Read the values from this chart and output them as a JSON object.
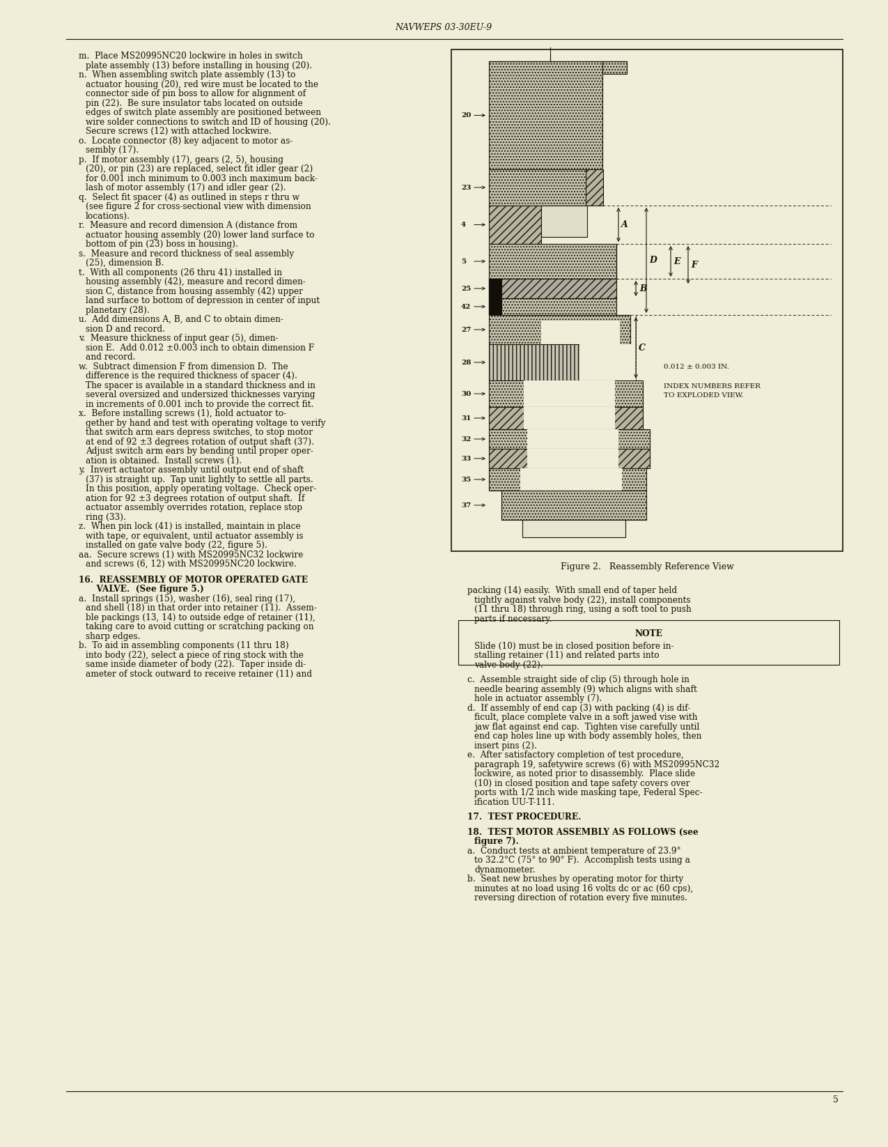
{
  "bg_color": "#f0edd8",
  "text_color": "#1a1208",
  "header": "NAVWEPS 03-30EU-9",
  "page_number": "5",
  "figure_caption": "Figure 2.   Reassembly Reference View",
  "left_col_lines": [
    {
      "text": "m.  Place MS20995NC20 lockwire in holes in switch",
      "indent": 1
    },
    {
      "text": "plate assembly (13) before installing in housing (20).",
      "indent": 2
    },
    {
      "text": "n.  When assembling switch plate assembly (13) to",
      "indent": 1
    },
    {
      "text": "actuator housing (20), red wire must be located to the",
      "indent": 2
    },
    {
      "text": "connector side of pin boss to allow for alignment of",
      "indent": 2
    },
    {
      "text": "pin (22).  Be sure insulator tabs located on outside",
      "indent": 2
    },
    {
      "text": "edges of switch plate assembly are positioned between",
      "indent": 2
    },
    {
      "text": "wire solder connections to switch and ID of housing (20).",
      "indent": 2
    },
    {
      "text": "Secure screws (12) with attached lockwire.",
      "indent": 2
    },
    {
      "text": "o.  Locate connector (8) key adjacent to motor as-",
      "indent": 1
    },
    {
      "text": "sembly (17).",
      "indent": 2
    },
    {
      "text": "p.  If motor assembly (17), gears (2, 5), housing",
      "indent": 1
    },
    {
      "text": "(20), or pin (23) are replaced, select fit idler gear (2)",
      "indent": 2
    },
    {
      "text": "for 0.001 inch minimum to 0.003 inch maximum back-",
      "indent": 2
    },
    {
      "text": "lash of motor assembly (17) and idler gear (2).",
      "indent": 2
    },
    {
      "text": "q.  Select fit spacer (4) as outlined in steps r thru w",
      "indent": 1
    },
    {
      "text": "(see figure 2 for cross-sectional view with dimension",
      "indent": 2
    },
    {
      "text": "locations).",
      "indent": 2
    },
    {
      "text": "r.  Measure and record dimension A (distance from",
      "indent": 1
    },
    {
      "text": "actuator housing assembly (20) lower land surface to",
      "indent": 2
    },
    {
      "text": "bottom of pin (23) boss in housing).",
      "indent": 2
    },
    {
      "text": "s.  Measure and record thickness of seal assembly",
      "indent": 1
    },
    {
      "text": "(25), dimension B.",
      "indent": 2
    },
    {
      "text": "t.  With all components (26 thru 41) installed in",
      "indent": 1
    },
    {
      "text": "housing assembly (42), measure and record dimen-",
      "indent": 2
    },
    {
      "text": "sion C, distance from housing assembly (42) upper",
      "indent": 2
    },
    {
      "text": "land surface to bottom of depression in center of input",
      "indent": 2
    },
    {
      "text": "planetary (28).",
      "indent": 2
    },
    {
      "text": "u.  Add dimensions A, B, and C to obtain dimen-",
      "indent": 1
    },
    {
      "text": "sion D and record.",
      "indent": 2
    },
    {
      "text": "v.  Measure thickness of input gear (5), dimen-",
      "indent": 1
    },
    {
      "text": "sion E.  Add 0.012 ±0.003 inch to obtain dimension F",
      "indent": 2
    },
    {
      "text": "and record.",
      "indent": 2
    },
    {
      "text": "w.  Subtract dimension F from dimension D.  The",
      "indent": 1
    },
    {
      "text": "difference is the required thickness of spacer (4).",
      "indent": 2
    },
    {
      "text": "The spacer is available in a standard thickness and in",
      "indent": 2
    },
    {
      "text": "several oversized and undersized thicknesses varying",
      "indent": 2
    },
    {
      "text": "in increments of 0.001 inch to provide the correct fit.",
      "indent": 2
    },
    {
      "text": "x.  Before installing screws (1), hold actuator to-",
      "indent": 1
    },
    {
      "text": "gether by hand and test with operating voltage to verify",
      "indent": 2
    },
    {
      "text": "that switch arm ears depress switches, to stop motor",
      "indent": 2
    },
    {
      "text": "at end of 92 ±3 degrees rotation of output shaft (37).",
      "indent": 2
    },
    {
      "text": "Adjust switch arm ears by bending until proper oper-",
      "indent": 2
    },
    {
      "text": "ation is obtained.  Install screws (1).",
      "indent": 2
    },
    {
      "text": "y.  Invert actuator assembly until output end of shaft",
      "indent": 1
    },
    {
      "text": "(37) is straight up.  Tap unit lightly to settle all parts.",
      "indent": 2
    },
    {
      "text": "In this position, apply operating voltage.  Check oper-",
      "indent": 2
    },
    {
      "text": "ation for 92 ±3 degrees rotation of output shaft.  If",
      "indent": 2
    },
    {
      "text": "actuator assembly overrides rotation, replace stop",
      "indent": 2
    },
    {
      "text": "ring (33).",
      "indent": 2
    },
    {
      "text": "z.  When pin lock (41) is installed, maintain in place",
      "indent": 1
    },
    {
      "text": "with tape, or equivalent, until actuator assembly is",
      "indent": 2
    },
    {
      "text": "installed on gate valve body (22, figure 5).",
      "indent": 2
    },
    {
      "text": "aa.  Secure screws (1) with MS20995NC32 lockwire",
      "indent": 1
    },
    {
      "text": "and screws (6, 12) with MS20995NC20 lockwire.",
      "indent": 2
    },
    {
      "text": "",
      "indent": 0,
      "gap": true
    },
    {
      "text": "16.  REASSEMBLY OF MOTOR OPERATED GATE",
      "indent": 1,
      "bold": true
    },
    {
      "text": "      VALVE.  (See figure 5.)",
      "indent": 1,
      "bold": true
    },
    {
      "text": "a.  Install springs (15), washer (16), seal ring (17),",
      "indent": 1
    },
    {
      "text": "and shell (18) in that order into retainer (11).  Assem-",
      "indent": 2
    },
    {
      "text": "ble packings (13, 14) to outside edge of retainer (11),",
      "indent": 2
    },
    {
      "text": "taking care to avoid cutting or scratching packing on",
      "indent": 2
    },
    {
      "text": "sharp edges.",
      "indent": 2
    },
    {
      "text": "b.  To aid in assembling components (11 thru 18)",
      "indent": 1
    },
    {
      "text": "into body (22), select a piece of ring stock with the",
      "indent": 2
    },
    {
      "text": "same inside diameter of body (22).  Taper inside di-",
      "indent": 2
    },
    {
      "text": "ameter of stock outward to receive retainer (11) and",
      "indent": 2
    }
  ],
  "right_col_lines": [
    {
      "text": "packing (14) easily.  With small end of taper held",
      "indent": 1
    },
    {
      "text": "tightly against valve body (22), install components",
      "indent": 2
    },
    {
      "text": "(11 thru 18) through ring, using a soft tool to push",
      "indent": 2
    },
    {
      "text": "parts if necessary.",
      "indent": 2
    },
    {
      "text": "",
      "indent": 0,
      "gap": true
    },
    {
      "text": "NOTE",
      "indent": 0,
      "bold": true,
      "center": true
    },
    {
      "text": "",
      "indent": 0,
      "gap_small": true
    },
    {
      "text": "Slide (10) must be in closed position before in-",
      "indent": 2
    },
    {
      "text": "stalling retainer (11) and related parts into",
      "indent": 2
    },
    {
      "text": "valve body (22).",
      "indent": 2
    },
    {
      "text": "",
      "indent": 0,
      "gap": true
    },
    {
      "text": "c.  Assemble straight side of clip (5) through hole in",
      "indent": 1
    },
    {
      "text": "needle bearing assembly (9) which aligns with shaft",
      "indent": 2
    },
    {
      "text": "hole in actuator assembly (7).",
      "indent": 2
    },
    {
      "text": "d.  If assembly of end cap (3) with packing (4) is dif-",
      "indent": 1
    },
    {
      "text": "ficult, place complete valve in a soft jawed vise with",
      "indent": 2
    },
    {
      "text": "jaw flat against end cap.  Tighten vise carefully until",
      "indent": 2
    },
    {
      "text": "end cap holes line up with body assembly holes, then",
      "indent": 2
    },
    {
      "text": "insert pins (2).",
      "indent": 2
    },
    {
      "text": "e.  After satisfactory completion of test procedure,",
      "indent": 1
    },
    {
      "text": "paragraph 19, safetywire screws (6) with MS20995NC32",
      "indent": 2
    },
    {
      "text": "lockwire, as noted prior to disassembly.  Place slide",
      "indent": 2
    },
    {
      "text": "(10) in closed position and tape safety covers over",
      "indent": 2
    },
    {
      "text": "ports with 1/2 inch wide masking tape, Federal Spec-",
      "indent": 2
    },
    {
      "text": "ification UU-T-111.",
      "indent": 2
    },
    {
      "text": "",
      "indent": 0,
      "gap": true
    },
    {
      "text": "17.  TEST PROCEDURE.",
      "indent": 1,
      "bold": true
    },
    {
      "text": "",
      "indent": 0,
      "gap": true
    },
    {
      "text": "18.  TEST MOTOR ASSEMBLY AS FOLLOWS (see",
      "indent": 1,
      "bold": true
    },
    {
      "text": "figure 7).",
      "indent": 2,
      "bold": true
    },
    {
      "text": "a.  Conduct tests at ambient temperature of 23.9°",
      "indent": 1
    },
    {
      "text": "to 32.2°C (75° to 90° F).  Accomplish tests using a",
      "indent": 2
    },
    {
      "text": "dynamometer.",
      "indent": 2
    },
    {
      "text": "b.  Seat new brushes by operating motor for thirty",
      "indent": 1
    },
    {
      "text": "minutes at no load using 16 volts dc or ac (60 cps),",
      "indent": 2
    },
    {
      "text": "reversing direction of rotation every five minutes.",
      "indent": 2
    }
  ]
}
